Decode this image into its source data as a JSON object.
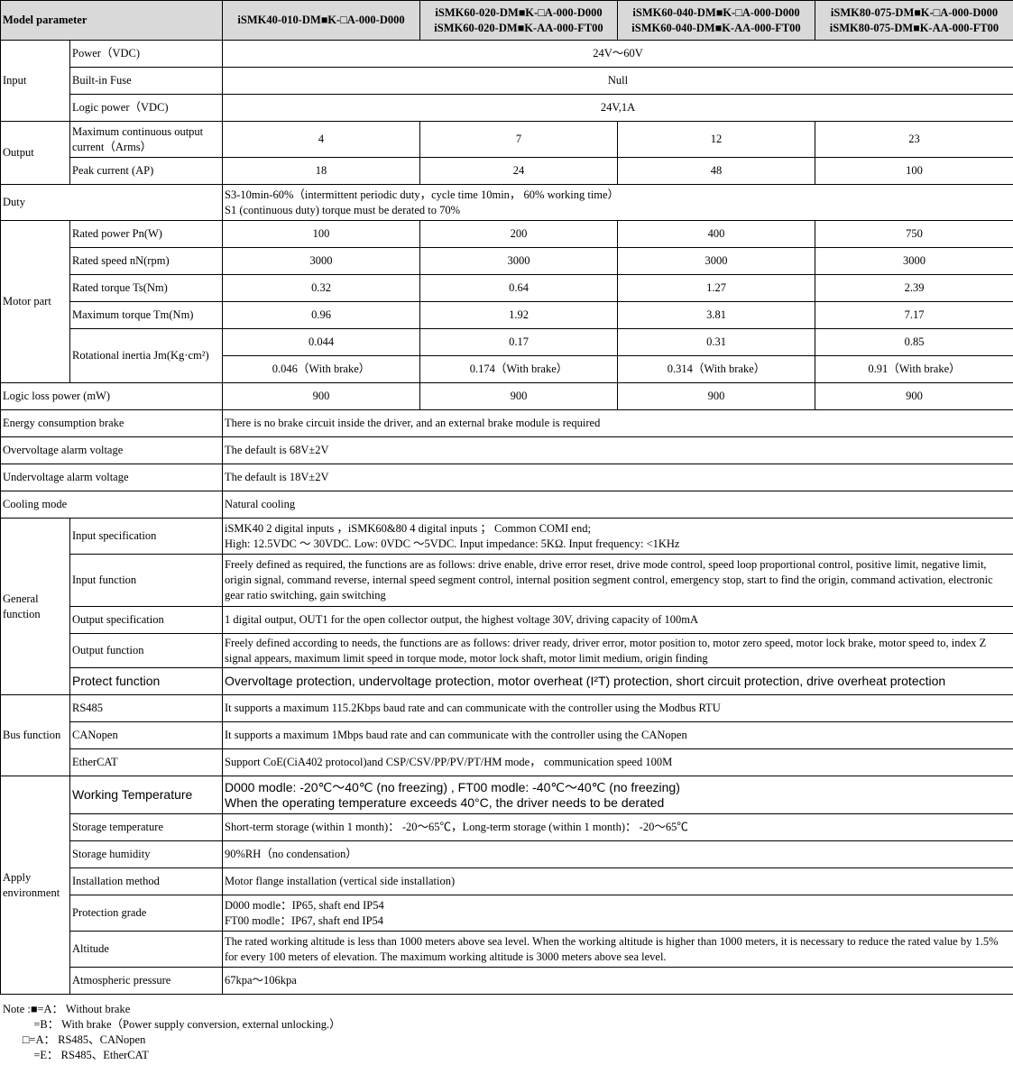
{
  "header": {
    "label": "Model parameter",
    "models": [
      [
        "iSMK40-010-DM■K-□A-000-D000"
      ],
      [
        "iSMK60-020-DM■K-□A-000-D000",
        "iSMK60-020-DM■K-AA-000-FT00"
      ],
      [
        "iSMK60-040-DM■K-□A-000-D000",
        "iSMK60-040-DM■K-AA-000-FT00"
      ],
      [
        "iSMK80-075-DM■K-□A-000-D000",
        "iSMK80-075-DM■K-AA-000-FT00"
      ]
    ]
  },
  "groups": [
    {
      "label": "Input",
      "rows": [
        {
          "param": "Power（VDC)",
          "span": "24V～60V",
          "h": 30
        },
        {
          "param": "Built-in Fuse",
          "span": "Null",
          "h": 30
        },
        {
          "param": "Logic power（VDC)",
          "span": "24V,1A",
          "h": 30
        }
      ]
    },
    {
      "label": "Output",
      "rows": [
        {
          "param": "Maximum continuous output current（Arms）",
          "values": [
            "4",
            "7",
            "12",
            "23"
          ],
          "h": 40
        },
        {
          "param": "Peak current (AP)",
          "values": [
            "18",
            "24",
            "48",
            "100"
          ],
          "h": 30
        }
      ]
    },
    {
      "label": "Duty",
      "single": true,
      "rows": [
        {
          "text": [
            "S3-10min-60%（intermittent periodic duty，cycle time 10min， 60% working time）",
            "S1 (continuous duty) torque must be derated to 70%"
          ],
          "h": 40
        }
      ]
    },
    {
      "label": "Motor part",
      "rows": [
        {
          "param": "Rated power Pn(W)",
          "values": [
            "100",
            "200",
            "400",
            "750"
          ],
          "h": 30
        },
        {
          "param": "Rated speed nN(rpm)",
          "values": [
            "3000",
            "3000",
            "3000",
            "3000"
          ],
          "h": 30
        },
        {
          "param": "Rated torque Ts(Nm)",
          "values": [
            "0.32",
            "0.64",
            "1.27",
            "2.39"
          ],
          "h": 30
        },
        {
          "param": "Maximum torque Tm(Nm)",
          "values": [
            "0.96",
            "1.92",
            "3.81",
            "7.17"
          ],
          "h": 30
        },
        {
          "param": "Rotational inertia Jm(Kg·cm²)",
          "values": [
            "0.044",
            "0.17",
            "0.31",
            "0.85"
          ],
          "values2": [
            "0.046（With brake）",
            "0.174（With brake）",
            "0.314（With brake）",
            "0.91（With brake）"
          ],
          "h": 30
        }
      ]
    },
    {
      "label": "Logic loss power (mW)",
      "single": true,
      "rows": [
        {
          "values": [
            "900",
            "900",
            "900",
            "900"
          ],
          "h": 30
        }
      ]
    },
    {
      "label": "Energy consumption brake",
      "single": true,
      "rows": [
        {
          "text": [
            "There is no brake circuit inside the driver, and an external brake module is required"
          ],
          "h": 30
        }
      ]
    },
    {
      "label": "Overvoltage alarm voltage",
      "single": true,
      "rows": [
        {
          "text": [
            "The default is 68V±2V"
          ],
          "h": 30
        }
      ]
    },
    {
      "label": "Undervoltage alarm voltage",
      "single": true,
      "rows": [
        {
          "text": [
            "The default is 18V±2V"
          ],
          "h": 30
        }
      ]
    },
    {
      "label": "Cooling mode",
      "single": true,
      "rows": [
        {
          "text": [
            "Natural cooling"
          ],
          "h": 30
        }
      ]
    },
    {
      "label": "General function",
      "rows": [
        {
          "param": "Input specification",
          "text": [
            "iSMK40 2 digital inputs ，iSMK60&80 4 digital inputs ； Common COMI end;",
            "High: 12.5VDC ～ 30VDC. Low: 0VDC ～5VDC. Input impedance: 5KΩ. Input frequency: <1KHz"
          ],
          "h": 40
        },
        {
          "param": "Input function",
          "text": [
            "Freely defined as required, the functions are as follows: drive enable, drive error reset, drive mode control, speed loop proportional control, positive limit, negative limit, origin signal, command reverse, internal speed segment control, internal position segment control, emergency stop, start to find the origin, command activation, electronic gear ratio switching, gain switching"
          ],
          "h": 58
        },
        {
          "param": "Output specification",
          "text": [
            "1 digital output, OUT1 for the open collector output, the highest voltage 30V, driving capacity of 100mA"
          ],
          "h": 30
        },
        {
          "param": "Output function",
          "text": [
            "Freely defined according to needs, the functions are as follows: driver ready, driver error, motor position to, motor zero speed, motor lock brake, motor speed to, index Z signal appears, maximum limit speed in torque mode, motor lock shaft, motor limit medium, origin finding"
          ],
          "h": 38
        },
        {
          "param": "Protect function",
          "sans": true,
          "text": [
            "Overvoltage protection, undervoltage protection, motor overheat (I²T) protection, short circuit protection, drive overheat protection"
          ],
          "h": 30
        }
      ]
    },
    {
      "label": "Bus function",
      "rows": [
        {
          "param": "RS485",
          "text": [
            "It supports a maximum 115.2Kbps baud rate and can communicate with the controller using the Modbus RTU"
          ],
          "h": 30
        },
        {
          "param": "CANopen",
          "text": [
            "It supports a maximum 1Mbps baud rate and can communicate with the controller using the CANopen"
          ],
          "h": 30
        },
        {
          "param": "EtherCAT",
          "text": [
            "Support CoE(CiA402 protocol)and CSP/CSV/PP/PV/PT/HM mode， communication speed 100M"
          ],
          "h": 30
        }
      ]
    },
    {
      "label": "Apply environment",
      "rows": [
        {
          "param": "Working Temperature",
          "sans": true,
          "text": [
            "D000 modle: -20℃～40℃ (no freezing) ,  FT00 modle: -40℃～40℃ (no freezing)",
            "When the operating temperature exceeds 40°C, the driver needs to be derated"
          ],
          "h": 42
        },
        {
          "param": "Storage temperature",
          "text": [
            "Short-term storage (within 1 month)： -20～65℃，Long-term storage (within 1 month)： -20～65℃"
          ],
          "h": 30
        },
        {
          "param": "Storage humidity",
          "text": [
            "90%RH（no condensation）"
          ],
          "h": 30
        },
        {
          "param": "Installation method",
          "text": [
            "Motor flange installation (vertical side installation)"
          ],
          "h": 30
        },
        {
          "param": "Protection grade",
          "text": [
            "D000 modle：IP65, shaft end IP54",
            "FT00 modle：IP67, shaft end IP54"
          ],
          "h": 40
        },
        {
          "param": "Altitude",
          "text": [
            "The rated working altitude is less than 1000 meters above sea level. When the working altitude is higher than 1000 meters, it is necessary to reduce the rated value by 1.5% for every 100 meters of elevation. The maximum working altitude is 3000 meters above sea level."
          ],
          "h": 40
        },
        {
          "param": "Atmospheric pressure",
          "text": [
            "67kpa～106kpa"
          ],
          "h": 30
        }
      ]
    }
  ],
  "notes": [
    "Note :■=A： Without brake",
    "           =B： With brake（Power supply conversion, external unlocking.）",
    "       □=A： RS485、CANopen",
    "           =E： RS485、EtherCAT"
  ]
}
